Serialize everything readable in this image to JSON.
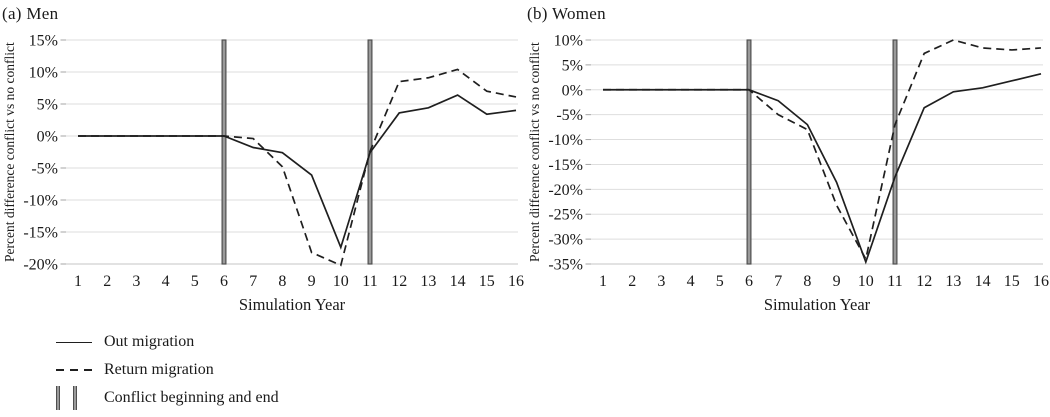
{
  "chart_data": [
    {
      "type": "line",
      "title": "(a) Men",
      "xlabel": "Simulation Year",
      "ylabel": "Percent difference conflict vs no conflict",
      "x": [
        1,
        2,
        3,
        4,
        5,
        6,
        7,
        8,
        9,
        10,
        11,
        12,
        13,
        14,
        15,
        16
      ],
      "ylim": [
        -20,
        15
      ],
      "ytick_step": 5,
      "ytick_labels": [
        "15%",
        "10%",
        "5%",
        "0%",
        "-5%",
        "-10%",
        "-15%",
        "-20%"
      ],
      "grid": true,
      "legend_position": "bottom-left",
      "conflict_years": [
        6,
        11
      ],
      "series": [
        {
          "name": "Out migration",
          "line_style": "solid",
          "values": [
            0,
            0,
            0,
            0,
            0,
            0,
            -1.8,
            -2.6,
            -6.1,
            -17.4,
            -2.6,
            3.6,
            4.4,
            6.4,
            3.4,
            4.0
          ]
        },
        {
          "name": "Return migration",
          "line_style": "dashed",
          "values": [
            0,
            0,
            0,
            0,
            0,
            0,
            -0.4,
            -4.8,
            -18.2,
            -20.2,
            -2.4,
            8.5,
            9.1,
            10.4,
            7.0,
            6.1
          ]
        }
      ]
    },
    {
      "type": "line",
      "title": "(b) Women",
      "xlabel": "Simulation Year",
      "ylabel": "Percent difference conflict vs no conflict",
      "x": [
        1,
        2,
        3,
        4,
        5,
        6,
        7,
        8,
        9,
        10,
        11,
        12,
        13,
        14,
        15,
        16
      ],
      "ylim": [
        -35,
        10
      ],
      "ytick_step": 5,
      "ytick_labels": [
        "10%",
        "5%",
        "0%",
        "-5%",
        "-10%",
        "-15%",
        "-20%",
        "-25%",
        "-30%",
        "-35%"
      ],
      "grid": true,
      "legend_position": "bottom-left",
      "conflict_years": [
        6,
        11
      ],
      "series": [
        {
          "name": "Out migration",
          "line_style": "solid",
          "values": [
            0,
            0,
            0,
            0,
            0,
            0,
            -2.2,
            -7.0,
            -18.6,
            -34.6,
            -17.5,
            -3.6,
            -0.4,
            0.4,
            1.8,
            3.2
          ]
        },
        {
          "name": "Return migration",
          "line_style": "dashed",
          "values": [
            0,
            0,
            0,
            0,
            0,
            0,
            -5.0,
            -8.0,
            -23.2,
            -34.0,
            -7.0,
            7.3,
            10.0,
            8.4,
            8.0,
            8.4
          ]
        }
      ]
    }
  ],
  "legend": {
    "items": [
      {
        "label": "Out migration",
        "marker": "solid-line"
      },
      {
        "label": "Return migration",
        "marker": "dashed-line"
      },
      {
        "label": "Conflict beginning and end",
        "marker": "conflict-bars"
      }
    ]
  },
  "colors": {
    "line": "#1f1f1f",
    "grid": "#dedede",
    "axis": "#c4c4c4",
    "tick": "#a6a6a6",
    "text": "#1a1a1a",
    "bar_fill": "#9a9a9a",
    "bar_edge": "#4f4f4f",
    "background": "#ffffff"
  }
}
